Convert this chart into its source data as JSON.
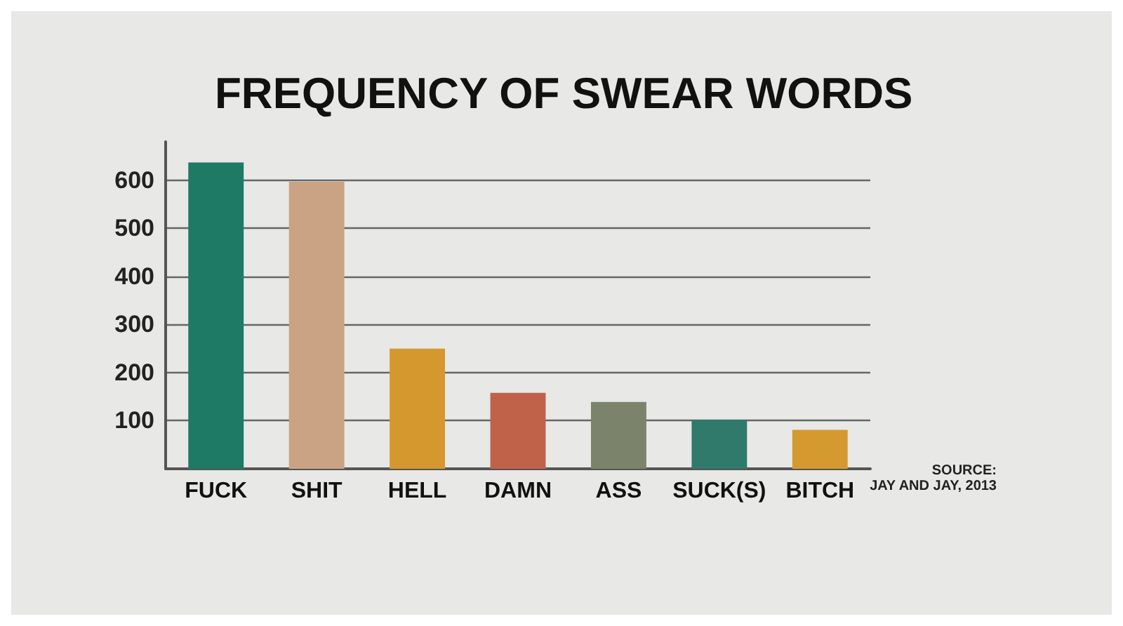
{
  "chart_data": {
    "type": "bar",
    "title": "FREQUENCY OF SWEAR WORDS",
    "categories": [
      "FUCK",
      "SHIT",
      "HELL",
      "DAMN",
      "ASS",
      "SUCK(S)",
      "BITCH"
    ],
    "values": [
      637,
      597,
      250,
      158,
      139,
      102,
      81
    ],
    "colors": [
      "#1e7a64",
      "#c9a383",
      "#d4982f",
      "#c0624a",
      "#7b846a",
      "#2f7a6a",
      "#d4992f"
    ],
    "ylim": [
      0,
      680
    ],
    "yticks": [
      100,
      200,
      300,
      400,
      500,
      600
    ],
    "grid": "y",
    "annotations": [
      "SOURCE:\nJAY AND JAY, 2013"
    ]
  }
}
